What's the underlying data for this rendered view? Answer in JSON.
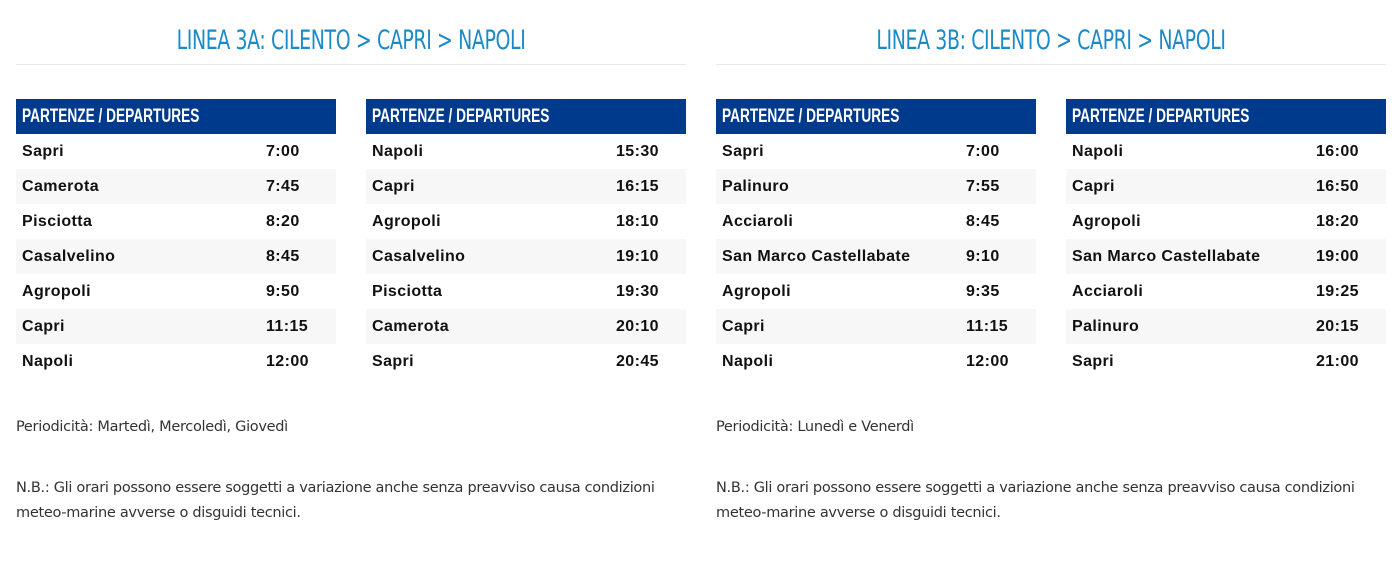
{
  "lines": [
    {
      "title": "LINEA 3A: CILENTO > CAPRI > NAPOLI",
      "tables": [
        {
          "header": "PARTENZE / DEPARTURES",
          "rows": [
            {
              "stop": "Sapri",
              "time": "7:00"
            },
            {
              "stop": "Camerota",
              "time": "7:45"
            },
            {
              "stop": "Pisciotta",
              "time": "8:20"
            },
            {
              "stop": "Casalvelino",
              "time": "8:45"
            },
            {
              "stop": "Agropoli",
              "time": "9:50"
            },
            {
              "stop": "Capri",
              "time": "11:15"
            },
            {
              "stop": "Napoli",
              "time": "12:00"
            }
          ]
        },
        {
          "header": "PARTENZE / DEPARTURES",
          "rows": [
            {
              "stop": "Napoli",
              "time": "15:30"
            },
            {
              "stop": "Capri",
              "time": "16:15"
            },
            {
              "stop": "Agropoli",
              "time": "18:10"
            },
            {
              "stop": "Casalvelino",
              "time": "19:10"
            },
            {
              "stop": "Pisciotta",
              "time": "19:30"
            },
            {
              "stop": "Camerota",
              "time": "20:10"
            },
            {
              "stop": "Sapri",
              "time": "20:45"
            }
          ]
        }
      ],
      "periodicity": "Periodicità: Martedì, Mercoledì, Giovedì",
      "note": "N.B.: Gli orari possono essere soggetti a variazione anche senza preavviso causa condizioni meteo-marine avverse o disguidi tecnici."
    },
    {
      "title": "LINEA 3B: CILENTO > CAPRI > NAPOLI",
      "tables": [
        {
          "header": "PARTENZE / DEPARTURES",
          "rows": [
            {
              "stop": "Sapri",
              "time": "7:00"
            },
            {
              "stop": "Palinuro",
              "time": "7:55"
            },
            {
              "stop": "Acciaroli",
              "time": "8:45"
            },
            {
              "stop": "San Marco Castellabate",
              "time": "9:10"
            },
            {
              "stop": "Agropoli",
              "time": "9:35"
            },
            {
              "stop": "Capri",
              "time": "11:15"
            },
            {
              "stop": "Napoli",
              "time": "12:00"
            }
          ]
        },
        {
          "header": "PARTENZE / DEPARTURES",
          "rows": [
            {
              "stop": "Napoli",
              "time": "16:00"
            },
            {
              "stop": "Capri",
              "time": "16:50"
            },
            {
              "stop": "Agropoli",
              "time": "18:20"
            },
            {
              "stop": "San Marco Castellabate",
              "time": "19:00"
            },
            {
              "stop": "Acciaroli",
              "time": "19:25"
            },
            {
              "stop": "Palinuro",
              "time": "20:15"
            },
            {
              "stop": "Sapri",
              "time": "21:00"
            }
          ]
        }
      ],
      "periodicity": "Periodicità: Lunedì e Venerdì",
      "note": "N.B.: Gli orari possono essere soggetti a variazione anche senza preavviso causa condizioni meteo-marine avverse o disguidi tecnici."
    }
  ],
  "colors": {
    "title": "#1a8ac8",
    "header_bg": "#003a8c",
    "header_text": "#ffffff",
    "stripe": "#f7f7f7",
    "divider": "#e8e8e8"
  }
}
